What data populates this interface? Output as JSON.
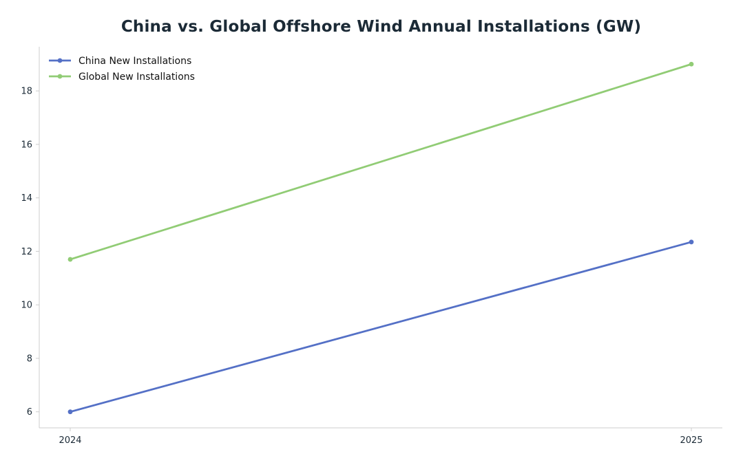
{
  "chart_data": {
    "type": "line",
    "title": "China vs. Global Offshore Wind Annual Installations (GW)",
    "xlabel": "",
    "ylabel": "",
    "x": [
      "2024",
      "2025"
    ],
    "series": [
      {
        "name": "China New Installations",
        "values": [
          6.0,
          12.35
        ],
        "color": "#5470c6"
      },
      {
        "name": "Global New Installations",
        "values": [
          11.7,
          19.0
        ],
        "color": "#91cc75"
      }
    ],
    "yticks": [
      6,
      8,
      10,
      12,
      14,
      16,
      18
    ],
    "ylim": [
      5.4,
      19.65
    ],
    "grid": false,
    "legend_position": "top-left",
    "axis_color": "#cccccc",
    "text_color": "#1b2a36"
  }
}
